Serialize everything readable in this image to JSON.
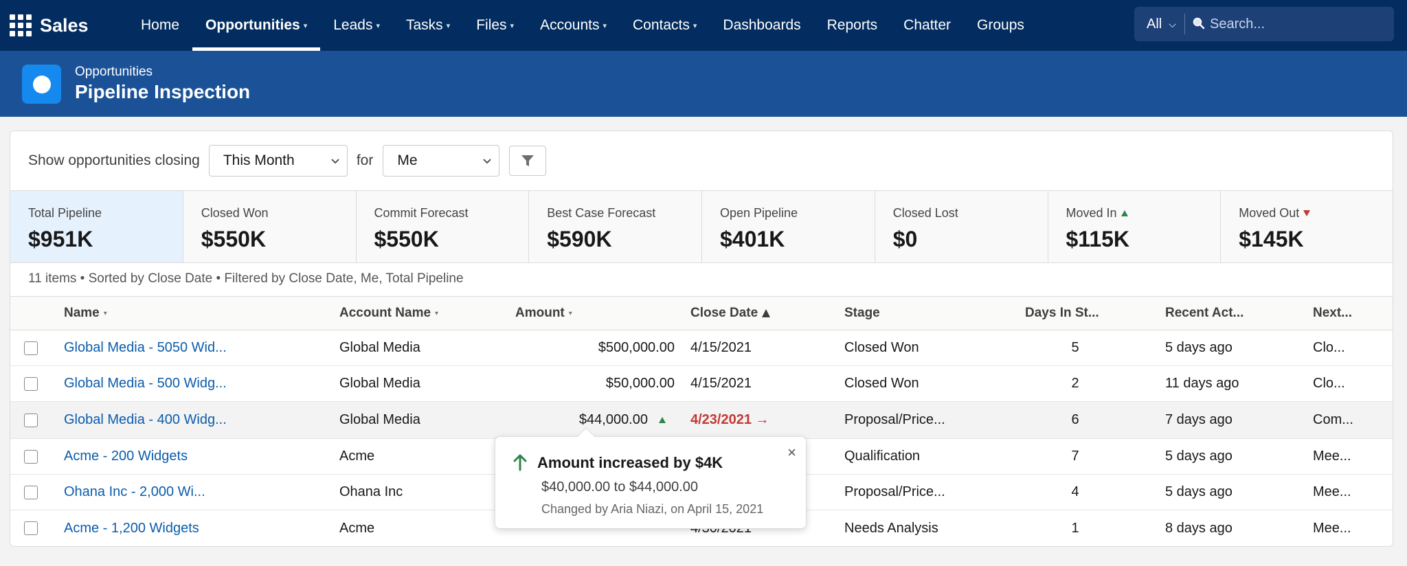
{
  "app": {
    "name": "Sales"
  },
  "nav": {
    "tabs": [
      {
        "label": "Home",
        "caret": false
      },
      {
        "label": "Opportunities",
        "caret": true,
        "active": true
      },
      {
        "label": "Leads",
        "caret": true
      },
      {
        "label": "Tasks",
        "caret": true
      },
      {
        "label": "Files",
        "caret": true
      },
      {
        "label": "Accounts",
        "caret": true
      },
      {
        "label": "Contacts",
        "caret": true
      },
      {
        "label": "Dashboards",
        "caret": false
      },
      {
        "label": "Reports",
        "caret": false
      },
      {
        "label": "Chatter",
        "caret": false
      },
      {
        "label": "Groups",
        "caret": false
      }
    ]
  },
  "search": {
    "scope": "All",
    "placeholder": "Search..."
  },
  "header": {
    "object_label": "Opportunities",
    "title": "Pipeline Inspection"
  },
  "filters": {
    "prefix": "Show opportunities closing",
    "period": "This Month",
    "for_label": "for",
    "owner": "Me"
  },
  "kpis": [
    {
      "label": "Total Pipeline",
      "value": "$951K",
      "active": true
    },
    {
      "label": "Closed Won",
      "value": "$550K"
    },
    {
      "label": "Commit Forecast",
      "value": "$550K"
    },
    {
      "label": "Best Case Forecast",
      "value": "$590K"
    },
    {
      "label": "Open Pipeline",
      "value": "$401K"
    },
    {
      "label": "Closed Lost",
      "value": "$0"
    },
    {
      "label": "Moved In",
      "value": "$115K",
      "trend": "up"
    },
    {
      "label": "Moved Out",
      "value": "$145K",
      "trend": "down"
    }
  ],
  "summary": "11 items • Sorted by Close Date • Filtered by Close Date, Me, Total Pipeline",
  "table": {
    "columns": {
      "name": "Name",
      "account": "Account Name",
      "amount": "Amount",
      "close_date": "Close Date",
      "stage": "Stage",
      "days": "Days In St...",
      "recent": "Recent Act...",
      "next": "Next..."
    },
    "rows": [
      {
        "name": "Global Media - 5050 Wid...",
        "account": "Global Media",
        "amount": "$500,000.00",
        "close_date": "4/15/2021",
        "stage": "Closed Won",
        "days": "5",
        "recent": "5 days ago",
        "next": "Clo..."
      },
      {
        "name": "Global Media - 500 Widg...",
        "account": "Global Media",
        "amount": "$50,000.00",
        "close_date": "4/15/2021",
        "stage": "Closed Won",
        "days": "2",
        "recent": "11 days ago",
        "next": "Clo..."
      },
      {
        "name": "Global Media - 400 Widg...",
        "account": "Global Media",
        "amount": "$44,000.00",
        "close_date": "4/23/2021 →",
        "stage": "Proposal/Price...",
        "days": "6",
        "recent": "7 days ago",
        "next": "Com..."
      },
      {
        "name": "Acme - 200 Widgets",
        "account": "Acme",
        "amount": "",
        "close_date": "",
        "stage": "Qualification",
        "days": "7",
        "recent": "5 days ago",
        "next": "Mee..."
      },
      {
        "name": "Ohana Inc - 2,000 Wi...",
        "account": "Ohana Inc",
        "amount": "",
        "close_date": "",
        "stage": "Proposal/Price...",
        "days": "4",
        "recent": "5 days ago",
        "next": "Mee..."
      },
      {
        "name": "Acme - 1,200 Widgets",
        "account": "Acme",
        "amount": "",
        "close_date": "4/30/2021",
        "stage": "Needs Analysis",
        "days": "1",
        "recent": "8 days ago",
        "next": "Mee..."
      }
    ]
  },
  "popover": {
    "title": "Amount increased by $4K",
    "change": "$40,000.00 to $44,000.00",
    "meta": "Changed by Aria Niazi, on April 15, 2021",
    "close": "×"
  }
}
